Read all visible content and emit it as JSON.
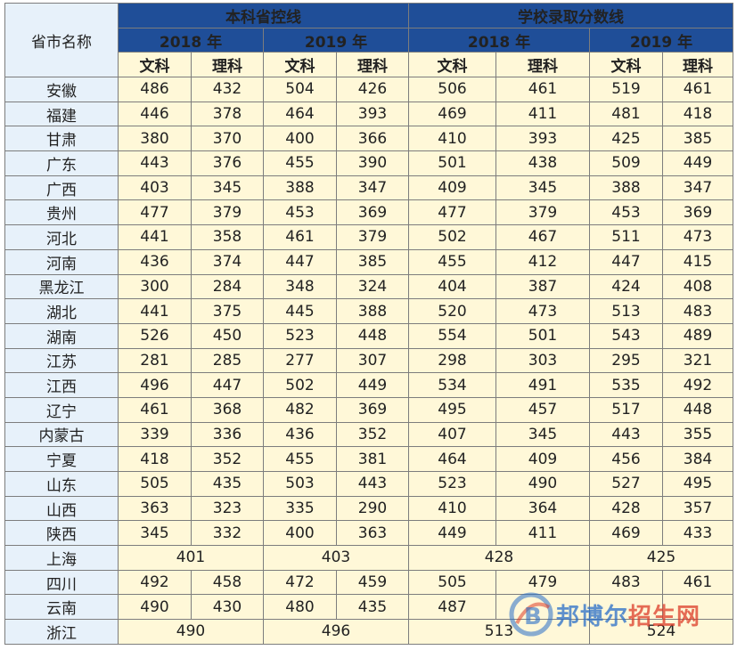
{
  "header": {
    "province": "省市名称",
    "group1": "本科省控线",
    "group2": "学校录取分数线",
    "years": [
      "2018 年",
      "2019 年",
      "2018 年",
      "2019 年"
    ],
    "subs": [
      "文科",
      "理科",
      "文科",
      "理科",
      "文科",
      "理科",
      "文科",
      "理科"
    ]
  },
  "rows": [
    {
      "name": "安徽",
      "v": [
        "486",
        "432",
        "504",
        "426",
        "506",
        "461",
        "519",
        "461"
      ]
    },
    {
      "name": "福建",
      "v": [
        "446",
        "378",
        "464",
        "393",
        "469",
        "411",
        "481",
        "418"
      ]
    },
    {
      "name": "甘肃",
      "v": [
        "380",
        "370",
        "400",
        "366",
        "410",
        "393",
        "425",
        "385"
      ]
    },
    {
      "name": "广东",
      "v": [
        "443",
        "376",
        "455",
        "390",
        "501",
        "438",
        "509",
        "449"
      ]
    },
    {
      "name": "广西",
      "v": [
        "403",
        "345",
        "388",
        "347",
        "409",
        "345",
        "388",
        "347"
      ]
    },
    {
      "name": "贵州",
      "v": [
        "477",
        "379",
        "453",
        "369",
        "477",
        "379",
        "453",
        "369"
      ]
    },
    {
      "name": "河北",
      "v": [
        "441",
        "358",
        "461",
        "379",
        "502",
        "467",
        "511",
        "473"
      ]
    },
    {
      "name": "河南",
      "v": [
        "436",
        "374",
        "447",
        "385",
        "455",
        "412",
        "447",
        "415"
      ]
    },
    {
      "name": "黑龙江",
      "v": [
        "300",
        "284",
        "348",
        "324",
        "404",
        "387",
        "424",
        "408"
      ]
    },
    {
      "name": "湖北",
      "v": [
        "441",
        "375",
        "445",
        "388",
        "520",
        "473",
        "513",
        "483"
      ]
    },
    {
      "name": "湖南",
      "v": [
        "526",
        "450",
        "523",
        "448",
        "554",
        "501",
        "543",
        "489"
      ]
    },
    {
      "name": "江苏",
      "v": [
        "281",
        "285",
        "277",
        "307",
        "298",
        "303",
        "295",
        "321"
      ]
    },
    {
      "name": "江西",
      "v": [
        "496",
        "447",
        "502",
        "449",
        "534",
        "491",
        "535",
        "492"
      ]
    },
    {
      "name": "辽宁",
      "v": [
        "461",
        "368",
        "482",
        "369",
        "495",
        "457",
        "517",
        "448"
      ]
    },
    {
      "name": "内蒙古",
      "v": [
        "339",
        "336",
        "436",
        "352",
        "407",
        "345",
        "443",
        "355"
      ]
    },
    {
      "name": "宁夏",
      "v": [
        "418",
        "352",
        "455",
        "381",
        "464",
        "409",
        "456",
        "384"
      ]
    },
    {
      "name": "山东",
      "v": [
        "505",
        "435",
        "503",
        "443",
        "523",
        "490",
        "527",
        "495"
      ]
    },
    {
      "name": "山西",
      "v": [
        "363",
        "323",
        "335",
        "290",
        "410",
        "364",
        "428",
        "357"
      ]
    },
    {
      "name": "陕西",
      "v": [
        "345",
        "332",
        "400",
        "363",
        "449",
        "411",
        "469",
        "433"
      ]
    }
  ],
  "shanghai": {
    "name": "上海",
    "v": [
      "401",
      "403",
      "428",
      "425"
    ]
  },
  "rows2": [
    {
      "name": "四川",
      "v": [
        "492",
        "458",
        "472",
        "459",
        "505",
        "479",
        "483",
        "461"
      ]
    },
    {
      "name": "云南",
      "v": [
        "490",
        "430",
        "480",
        "435",
        "487",
        "",
        "",
        ""
      ]
    }
  ],
  "zhejiang": {
    "name": "浙江",
    "v": [
      "490",
      "496",
      "513",
      "524"
    ]
  },
  "watermark": {
    "text_a": "邦博尔",
    "text_b": "招生网"
  }
}
